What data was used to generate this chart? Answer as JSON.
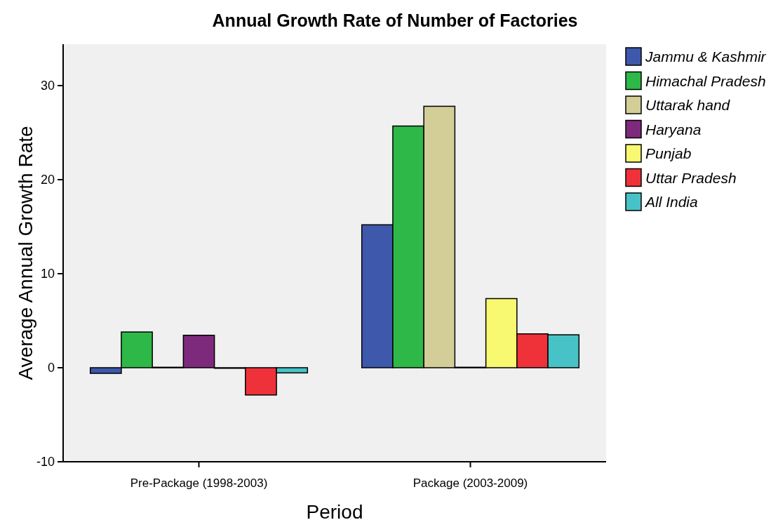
{
  "chart_data": {
    "type": "bar",
    "title": "Annual Growth Rate of Number of Factories",
    "xlabel": "Period",
    "ylabel": "Average Annual Growth Rate",
    "categories": [
      "Pre-Package (1998-2003)",
      "Package (2003-2009)"
    ],
    "series": [
      {
        "name": "Jammu & Kashmir",
        "color": "#3e58ac",
        "values": [
          -0.6,
          15.2
        ]
      },
      {
        "name": "Himachal Pradesh",
        "color": "#2eb848",
        "values": [
          3.8,
          25.7
        ]
      },
      {
        "name": "Uttarak hand",
        "color": "#d3ce97",
        "values": [
          0.05,
          27.8
        ]
      },
      {
        "name": "Haryana",
        "color": "#7d2a7c",
        "values": [
          3.45,
          0.05
        ]
      },
      {
        "name": "Punjab",
        "color": "#f9f871",
        "values": [
          -0.05,
          7.35
        ]
      },
      {
        "name": "Uttar Pradesh",
        "color": "#ef323a",
        "values": [
          -2.9,
          3.6
        ]
      },
      {
        "name": "All India",
        "color": "#47c3c7",
        "values": [
          -0.55,
          3.5
        ]
      }
    ],
    "ylim": [
      -10,
      34.4
    ],
    "yticks": [
      -10,
      0,
      10,
      20,
      30
    ],
    "grid": false,
    "legend": "top right"
  }
}
